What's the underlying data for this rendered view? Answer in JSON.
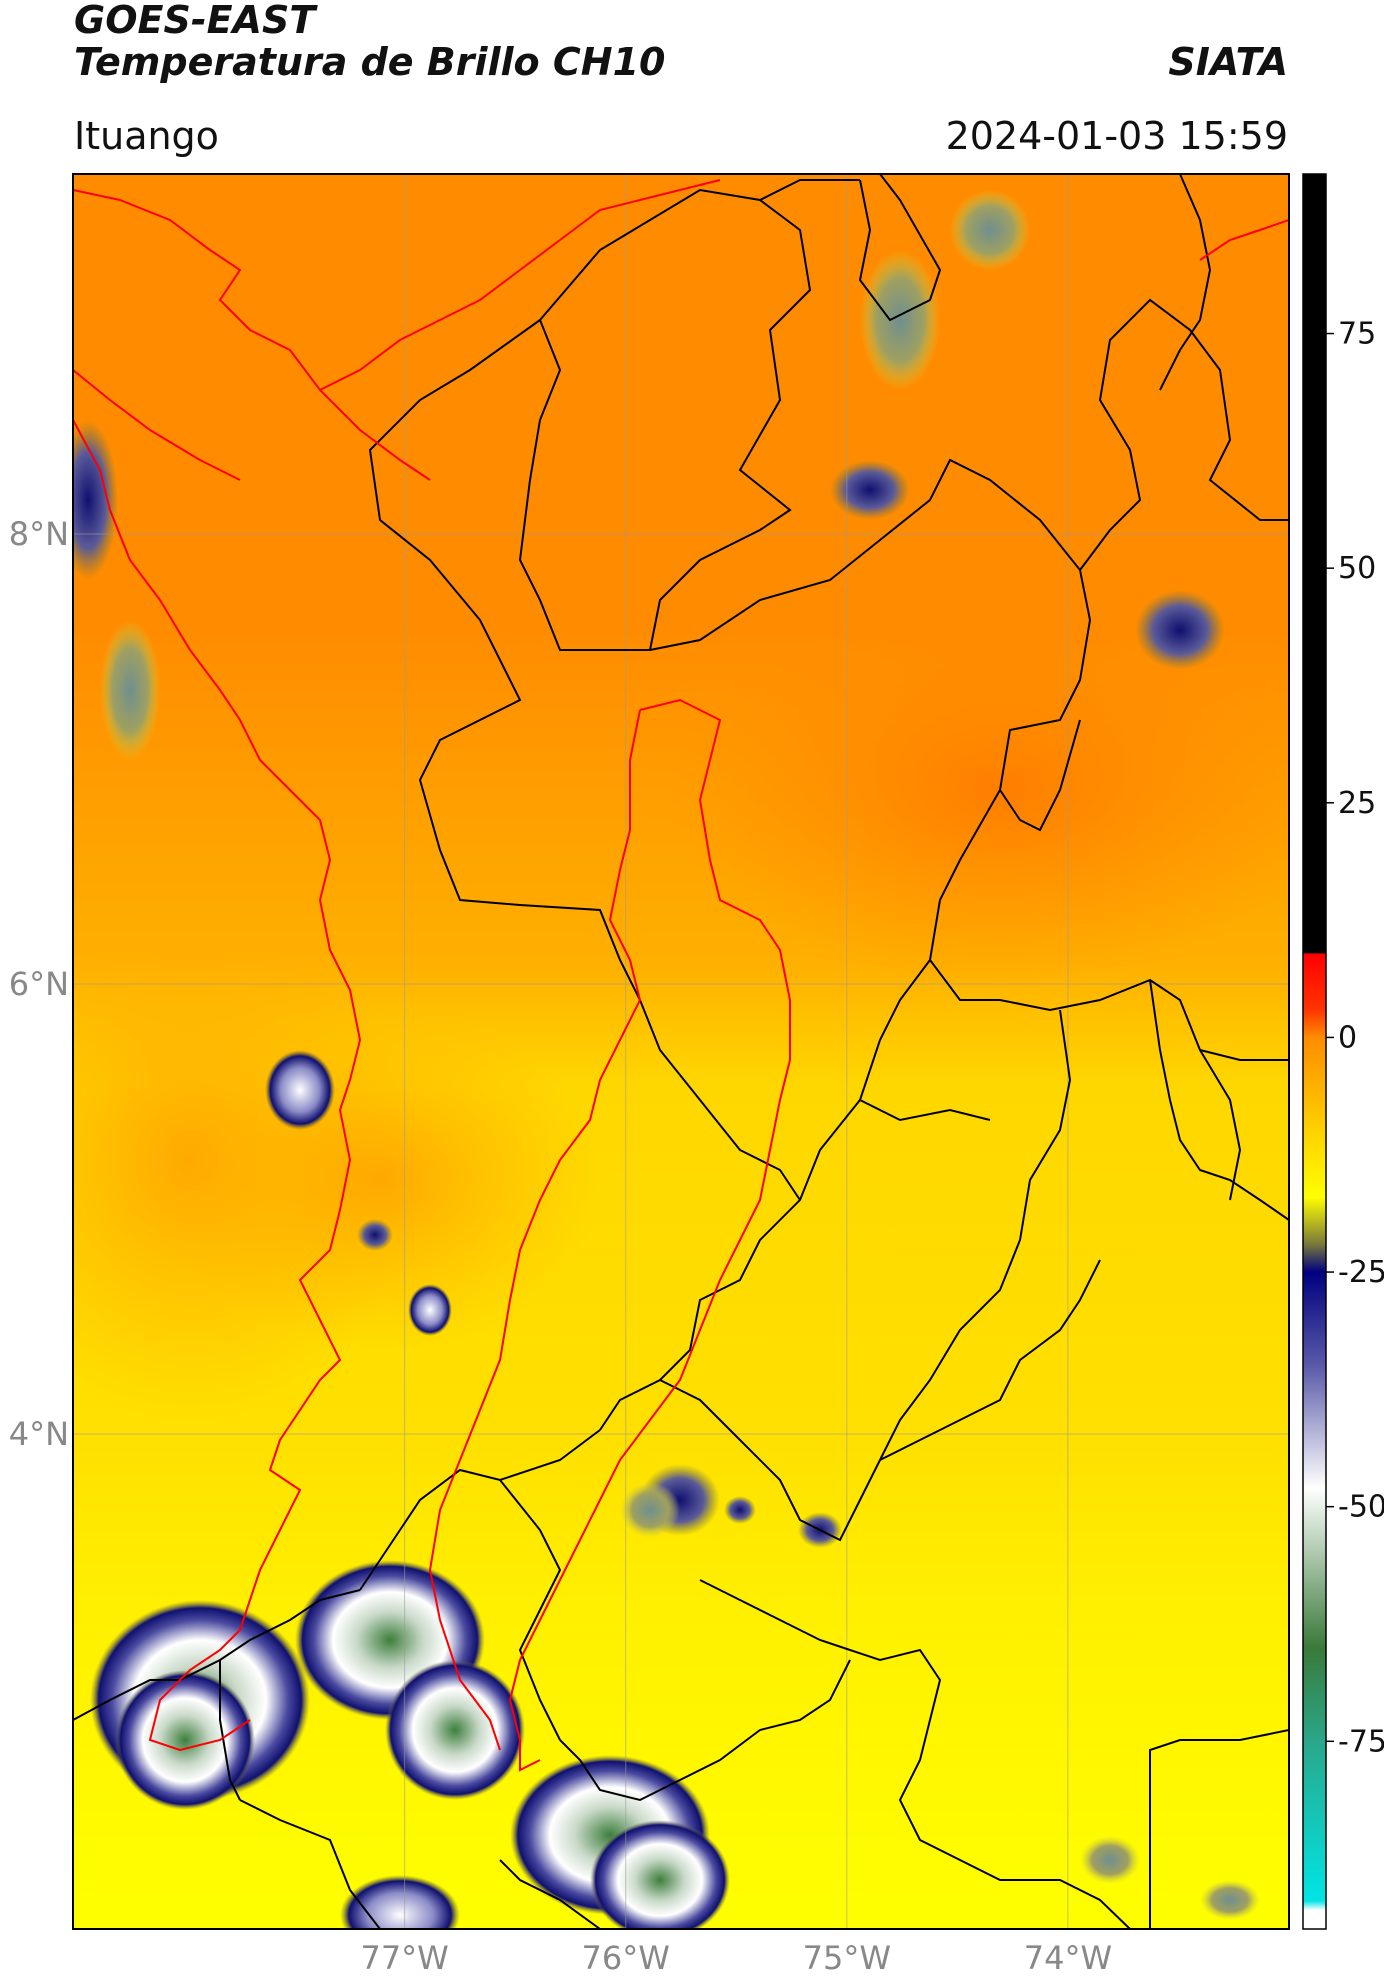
{
  "header": {
    "satellite": "GOES-EAST",
    "product": "Temperatura de Brillo CH10",
    "brand": "SIATA",
    "region": "Ituango",
    "timestamp": "2024-01-03 15:59"
  },
  "map": {
    "lon_ticks": [
      {
        "value": -77,
        "label": "77°W"
      },
      {
        "value": -76,
        "label": "76°W"
      },
      {
        "value": -75,
        "label": "75°W"
      },
      {
        "value": -74,
        "label": "74°W"
      }
    ],
    "lat_ticks": [
      {
        "value": 8,
        "label": "8°N"
      },
      {
        "value": 6,
        "label": "6°N"
      },
      {
        "value": 4,
        "label": "4°N"
      }
    ],
    "lon_range": [
      -78.5,
      -73.0
    ],
    "lat_range": [
      1.8,
      9.6
    ]
  },
  "colorbar": {
    "range": [
      -95,
      92
    ],
    "ticks": [
      {
        "value": 75,
        "label": "75"
      },
      {
        "value": 50,
        "label": "50"
      },
      {
        "value": 25,
        "label": "25"
      },
      {
        "value": 0,
        "label": "0"
      },
      {
        "value": -25,
        "label": "-25"
      },
      {
        "value": -50,
        "label": "-50"
      },
      {
        "value": -75,
        "label": "-75"
      }
    ],
    "stops": [
      {
        "value": 92,
        "color": "#000000"
      },
      {
        "value": 9,
        "color": "#000000"
      },
      {
        "value": 8.9,
        "color": "#ff0000"
      },
      {
        "value": 3,
        "color": "#ff3300"
      },
      {
        "value": 0,
        "color": "#ff8c00"
      },
      {
        "value": -10,
        "color": "#ffd200"
      },
      {
        "value": -17,
        "color": "#ffff00"
      },
      {
        "value": -22,
        "color": "#7a7a3a"
      },
      {
        "value": -25,
        "color": "#000080"
      },
      {
        "value": -35,
        "color": "#5a5aaa"
      },
      {
        "value": -48,
        "color": "#ffffff"
      },
      {
        "value": -65,
        "color": "#3a7a3a"
      },
      {
        "value": -75,
        "color": "#2aa78a"
      },
      {
        "value": -92,
        "color": "#00e5e5"
      },
      {
        "value": -93,
        "color": "#ffffff"
      }
    ]
  }
}
